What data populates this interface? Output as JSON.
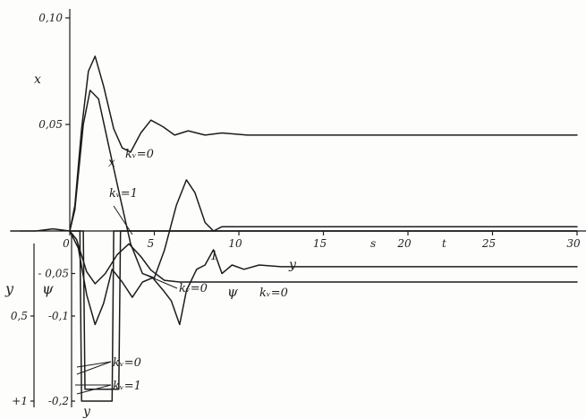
{
  "chart_data": {
    "type": "line",
    "title": "",
    "xlabel": "t",
    "x_unit": "s",
    "xlim": [
      0,
      30
    ],
    "x_ticks": [
      {
        "value": 0,
        "label": "0"
      },
      {
        "value": 5,
        "label": "5"
      },
      {
        "value": 10,
        "label": "10"
      },
      {
        "value": 15,
        "label": "15"
      },
      {
        "value": 20,
        "label": "20"
      },
      {
        "value": 25,
        "label": "25"
      },
      {
        "value": 30,
        "label": "30"
      }
    ],
    "upper_axis": {
      "variable": "x",
      "ylim": [
        0,
        0.1
      ],
      "ticks": [
        {
          "value": 0.1,
          "label": "0,10"
        },
        {
          "value": 0.05,
          "label": "0,05"
        }
      ]
    },
    "lower_axes": {
      "y_axis": {
        "symbol": "y",
        "ylim": [
          0,
          1
        ],
        "ticks": [
          {
            "value": 0.5,
            "label": "0,5"
          },
          {
            "value": 1,
            "label": "+1"
          }
        ]
      },
      "psi_axis": {
        "symbol": "ψ",
        "ylim": [
          0,
          -0.2
        ],
        "ticks": [
          {
            "value": -0.05,
            "label": "- 0,05"
          },
          {
            "value": -0.1,
            "label": "-0,1"
          },
          {
            "value": -0.2,
            "label": "-0,2"
          }
        ]
      }
    },
    "series": [
      {
        "name": "x, kᵥ=0",
        "axis": "x",
        "points": [
          [
            -3.5,
            0.0
          ],
          [
            -2,
            0.0
          ],
          [
            -1,
            0.001
          ],
          [
            0,
            0.0
          ],
          [
            0.3,
            0.012
          ],
          [
            0.7,
            0.048
          ],
          [
            1.1,
            0.075
          ],
          [
            1.5,
            0.082
          ],
          [
            2.0,
            0.068
          ],
          [
            2.6,
            0.048
          ],
          [
            3.1,
            0.039
          ],
          [
            3.6,
            0.037
          ],
          [
            4.2,
            0.046
          ],
          [
            4.8,
            0.052
          ],
          [
            5.5,
            0.049
          ],
          [
            6.2,
            0.045
          ],
          [
            7.0,
            0.047
          ],
          [
            8.0,
            0.045
          ],
          [
            9.0,
            0.046
          ],
          [
            10.5,
            0.045
          ],
          [
            30,
            0.045
          ]
        ]
      },
      {
        "name": "x, kᵥ=1",
        "axis": "x",
        "points": [
          [
            0,
            0.0
          ],
          [
            0.3,
            0.01
          ],
          [
            0.8,
            0.05
          ],
          [
            1.2,
            0.066
          ],
          [
            1.7,
            0.062
          ],
          [
            2.3,
            0.04
          ],
          [
            3.0,
            0.015
          ],
          [
            3.6,
            -0.006
          ],
          [
            4.3,
            -0.02
          ],
          [
            5.0,
            -0.022
          ],
          [
            5.6,
            -0.009
          ],
          [
            6.3,
            0.012
          ],
          [
            6.9,
            0.024
          ],
          [
            7.4,
            0.018
          ],
          [
            8.0,
            0.004
          ],
          [
            8.5,
            0.0
          ],
          [
            9.0,
            0.002
          ],
          [
            30,
            0.002
          ]
        ]
      },
      {
        "name": "y, kᵥ=0",
        "axis": "y",
        "points": [
          [
            0,
            0.0
          ],
          [
            0.6,
            0.0
          ],
          [
            0.7,
            1.0
          ],
          [
            2.5,
            1.0
          ],
          [
            2.6,
            0.0
          ],
          [
            6.5,
            0.0
          ],
          [
            30,
            0.0
          ]
        ]
      },
      {
        "name": "y, kᵥ=1",
        "axis": "y",
        "points": [
          [
            0,
            0.0
          ],
          [
            0.8,
            0.0
          ],
          [
            0.9,
            0.93
          ],
          [
            2.9,
            0.93
          ],
          [
            3.0,
            0.0
          ],
          [
            6.2,
            0.0
          ],
          [
            30,
            0.0
          ]
        ]
      },
      {
        "name": "ψ, kᵥ=0",
        "axis": "psi",
        "points": [
          [
            0,
            0.0
          ],
          [
            0.4,
            -0.01
          ],
          [
            1.0,
            -0.048
          ],
          [
            1.5,
            -0.062
          ],
          [
            2.1,
            -0.05
          ],
          [
            2.8,
            -0.028
          ],
          [
            3.5,
            -0.015
          ],
          [
            4.2,
            -0.03
          ],
          [
            4.8,
            -0.046
          ],
          [
            5.6,
            -0.058
          ],
          [
            6.5,
            -0.06
          ],
          [
            8.0,
            -0.06
          ],
          [
            10.0,
            -0.06
          ],
          [
            30,
            -0.06
          ]
        ]
      },
      {
        "name": "ψ, kᵥ=1",
        "axis": "psi",
        "points": [
          [
            0,
            0.0
          ],
          [
            0.5,
            -0.02
          ],
          [
            1.0,
            -0.075
          ],
          [
            1.5,
            -0.11
          ],
          [
            2.0,
            -0.085
          ],
          [
            2.5,
            -0.045
          ],
          [
            3.1,
            -0.06
          ],
          [
            3.7,
            -0.078
          ],
          [
            4.3,
            -0.06
          ],
          [
            4.9,
            -0.055
          ],
          [
            5.5,
            -0.069
          ],
          [
            6.0,
            -0.082
          ],
          [
            6.5,
            -0.11
          ],
          [
            6.9,
            -0.07
          ],
          [
            7.5,
            -0.045
          ],
          [
            8.0,
            -0.04
          ],
          [
            8.5,
            -0.022
          ],
          [
            9.0,
            -0.05
          ],
          [
            9.6,
            -0.04
          ],
          [
            10.3,
            -0.045
          ],
          [
            11.2,
            -0.04
          ],
          [
            12.5,
            -0.042
          ],
          [
            30,
            -0.042
          ]
        ]
      }
    ],
    "annotations": [
      {
        "text": "x"
      },
      {
        "text": "kᵥ=0"
      },
      {
        "text": "kᵥ=1"
      },
      {
        "text": "x"
      },
      {
        "text": "1"
      },
      {
        "text": "y"
      },
      {
        "text": "kᵥ=0"
      },
      {
        "text": "ψ"
      },
      {
        "text": "kᵥ=0"
      },
      {
        "text": "kᵥ=0"
      },
      {
        "text": "kᵥ=1"
      },
      {
        "text": "y"
      }
    ],
    "grid": false,
    "legend": "none"
  }
}
